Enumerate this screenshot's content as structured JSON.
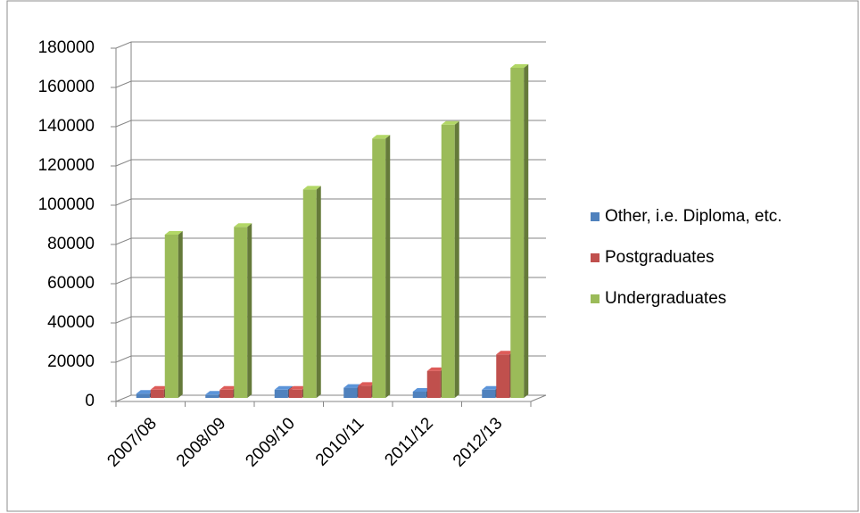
{
  "chart_data": {
    "type": "bar3d",
    "categories": [
      "2007/08",
      "2008/09",
      "2009/10",
      "2010/11",
      "2011/12",
      "2012/13"
    ],
    "series": [
      {
        "name": "Other, i.e. Diploma, etc.",
        "color": "#4f81bd",
        "values": [
          4000,
          3500,
          6000,
          7000,
          5000,
          6000
        ]
      },
      {
        "name": "Postgraduates",
        "color": "#c0504d",
        "values": [
          6000,
          6000,
          6000,
          8000,
          15500,
          24000
        ]
      },
      {
        "name": "Undergraduates",
        "color": "#9bbb59",
        "values": [
          85000,
          89000,
          108000,
          134000,
          141000,
          170000
        ]
      }
    ],
    "ylim": [
      0,
      180000
    ],
    "yticks": [
      0,
      20000,
      40000,
      60000,
      80000,
      100000,
      120000,
      140000,
      160000,
      180000
    ],
    "grid": true,
    "legend": "right"
  }
}
